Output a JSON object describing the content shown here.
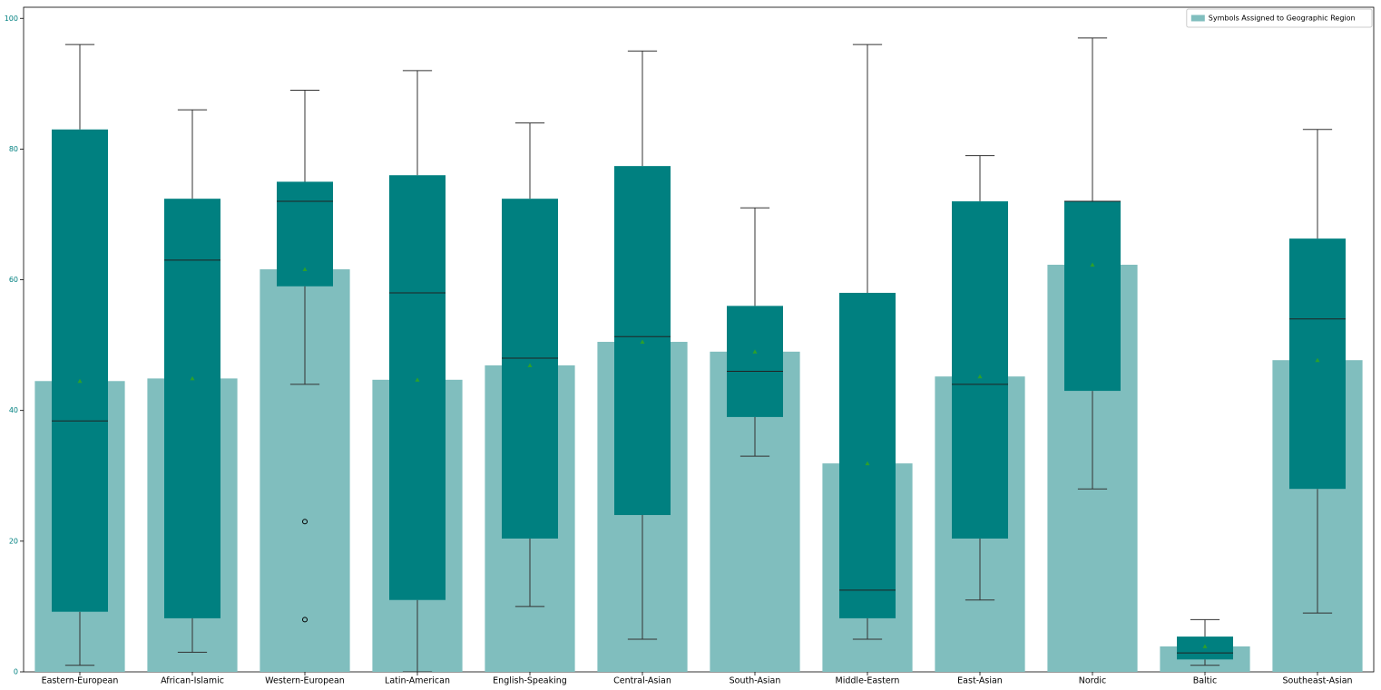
{
  "chart_data": {
    "type": "box",
    "categories": [
      "Eastern-European",
      "African-Islamic",
      "Western-European",
      "Latin-American",
      "English-Speaking",
      "Central-Asian",
      "South-Asian",
      "Middle-Eastern",
      "East-Asian",
      "Nordic",
      "Baltic",
      "Southeast-Asian"
    ],
    "series": [
      {
        "name": "Symbols Assigned to Geographic Region",
        "color": "#80bebe",
        "values": [
          44.5,
          44.9,
          61.6,
          44.7,
          46.9,
          50.5,
          49,
          31.9,
          45.2,
          62.3,
          3.9,
          47.7
        ]
      }
    ],
    "boxes": {
      "color": "#008080",
      "whislo": [
        1,
        3,
        44,
        0,
        10,
        5,
        33,
        5,
        11,
        28,
        1,
        9
      ],
      "q1": [
        9.2,
        8.2,
        59,
        11,
        20.4,
        24,
        39,
        8.2,
        20.4,
        43,
        1.9,
        28
      ],
      "median": [
        38.4,
        63,
        72,
        58,
        48,
        51.3,
        46,
        12.5,
        44,
        72,
        2.9,
        54
      ],
      "q3": [
        83,
        72.4,
        75,
        76,
        72.4,
        77.4,
        56,
        58,
        72,
        72,
        5.4,
        66.3
      ],
      "whishi": [
        96,
        86,
        89,
        92,
        84,
        95,
        71,
        96,
        79,
        97,
        8,
        83
      ],
      "fliers": [
        [],
        [],
        [
          23,
          8
        ],
        [],
        [],
        [],
        [],
        [],
        [],
        [],
        [],
        []
      ]
    },
    "mean_color": "#2ca02c",
    "ylim": [
      0,
      101.7
    ],
    "yticks": [
      0,
      20,
      40,
      60,
      80,
      100
    ],
    "ytick_color": "#008080",
    "legend": "upper right"
  }
}
